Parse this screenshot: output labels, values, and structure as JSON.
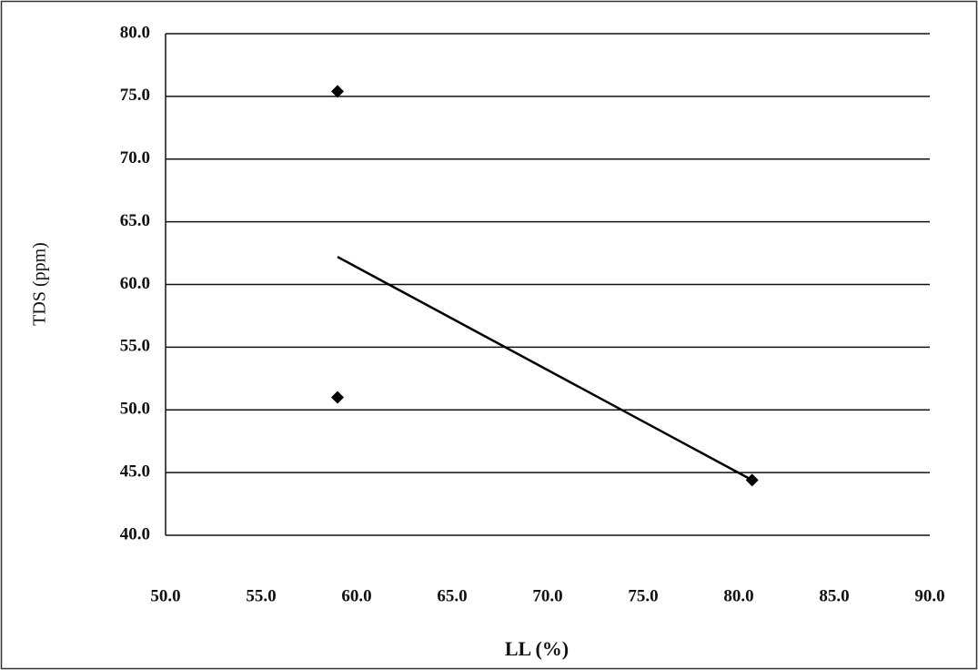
{
  "chart_data": {
    "type": "scatter",
    "x_label": "LL (%)",
    "y_label": "TDS (ppm)",
    "series": [
      {
        "color": "#000000",
        "x": [
          59.0,
          59.0,
          80.7
        ],
        "values": [
          75.4,
          51.0,
          44.4
        ]
      }
    ],
    "trendline": {
      "color": "#000000",
      "x": [
        59.0,
        80.7
      ],
      "values": [
        62.2,
        44.4
      ]
    },
    "xlim": [
      50,
      90
    ],
    "ylim": [
      40,
      80
    ],
    "xticks": [
      {
        "value": 50,
        "label": "50.0"
      },
      {
        "value": 55,
        "label": "55.0"
      },
      {
        "value": 60,
        "label": "60.0"
      },
      {
        "value": 65,
        "label": "65.0"
      },
      {
        "value": 70,
        "label": "70.0"
      },
      {
        "value": 75,
        "label": "75.0"
      },
      {
        "value": 80,
        "label": "80.0"
      },
      {
        "value": 85,
        "label": "85.0"
      },
      {
        "value": 90,
        "label": "90.0"
      }
    ],
    "yticks": [
      {
        "value": 40,
        "label": "40.0"
      },
      {
        "value": 45,
        "label": "45.0"
      },
      {
        "value": 50,
        "label": "50.0"
      },
      {
        "value": 55,
        "label": "55.0"
      },
      {
        "value": 60,
        "label": "60.0"
      },
      {
        "value": 65,
        "label": "65.0"
      },
      {
        "value": 70,
        "label": "70.0"
      },
      {
        "value": 75,
        "label": "75.0"
      },
      {
        "value": 80,
        "label": "80.0"
      }
    ],
    "grid": true
  }
}
